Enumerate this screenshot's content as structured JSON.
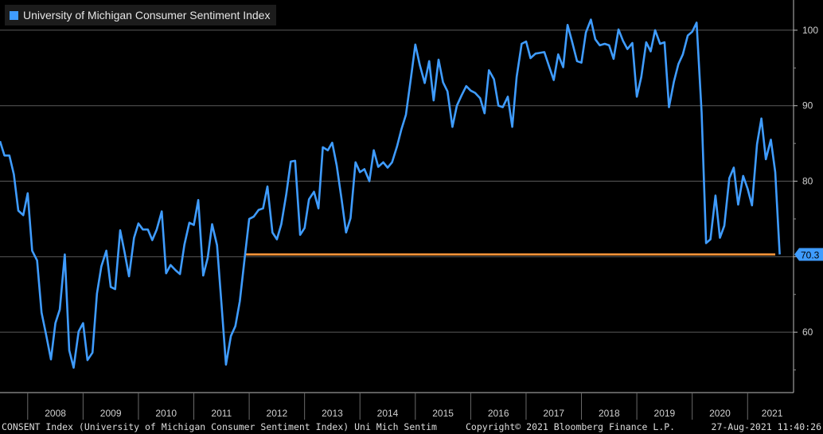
{
  "legend": {
    "label": "University of Michigan Consumer Sentiment Index",
    "color": "#3f9cff"
  },
  "footer": {
    "left": "CONSENT Index (University of Michigan Consumer Sentiment Index) Uni Mich Sentim",
    "center": "Copyright© 2021 Bloomberg Finance L.P.",
    "right": "27-Aug-2021 11:40:26"
  },
  "chart_data": {
    "type": "line",
    "ylim": [
      52,
      104
    ],
    "xlim": [
      2007.5,
      2021.83
    ],
    "yticks": [
      60,
      70,
      80,
      90,
      100
    ],
    "ytick_labels": [
      "60",
      "70",
      "80",
      "90",
      "100"
    ],
    "xticks": [
      "2008",
      "2009",
      "2010",
      "2011",
      "2012",
      "2013",
      "2014",
      "2015",
      "2016",
      "2017",
      "2018",
      "2019",
      "2020",
      "2021"
    ],
    "grid": "horizontal",
    "legend_position": "top-left",
    "series": [
      {
        "name": "University of Michigan Consumer Sentiment Index",
        "color": "#3f9cff",
        "x": [
          2007.5,
          2007.58,
          2007.67,
          2007.75,
          2007.83,
          2007.92,
          2008.0,
          2008.08,
          2008.17,
          2008.25,
          2008.33,
          2008.42,
          2008.5,
          2008.58,
          2008.67,
          2008.75,
          2008.83,
          2008.92,
          2009.0,
          2009.08,
          2009.17,
          2009.25,
          2009.33,
          2009.42,
          2009.5,
          2009.58,
          2009.67,
          2009.75,
          2009.83,
          2009.92,
          2010.0,
          2010.08,
          2010.17,
          2010.25,
          2010.33,
          2010.42,
          2010.5,
          2010.58,
          2010.67,
          2010.75,
          2010.83,
          2010.92,
          2011.0,
          2011.08,
          2011.17,
          2011.25,
          2011.33,
          2011.42,
          2011.5,
          2011.58,
          2011.67,
          2011.75,
          2011.83,
          2011.92,
          2012.0,
          2012.08,
          2012.17,
          2012.25,
          2012.33,
          2012.42,
          2012.5,
          2012.58,
          2012.67,
          2012.75,
          2012.83,
          2012.92,
          2013.0,
          2013.08,
          2013.17,
          2013.25,
          2013.33,
          2013.42,
          2013.5,
          2013.58,
          2013.67,
          2013.75,
          2013.83,
          2013.92,
          2014.0,
          2014.08,
          2014.17,
          2014.25,
          2014.33,
          2014.42,
          2014.5,
          2014.58,
          2014.67,
          2014.75,
          2014.83,
          2014.92,
          2015.0,
          2015.08,
          2015.17,
          2015.25,
          2015.33,
          2015.42,
          2015.5,
          2015.58,
          2015.67,
          2015.75,
          2015.83,
          2015.92,
          2016.0,
          2016.08,
          2016.17,
          2016.25,
          2016.33,
          2016.42,
          2016.5,
          2016.58,
          2016.67,
          2016.75,
          2016.83,
          2016.92,
          2017.0,
          2017.08,
          2017.17,
          2017.25,
          2017.33,
          2017.42,
          2017.5,
          2017.58,
          2017.67,
          2017.75,
          2017.83,
          2017.92,
          2018.0,
          2018.08,
          2018.17,
          2018.25,
          2018.33,
          2018.42,
          2018.5,
          2018.58,
          2018.67,
          2018.75,
          2018.83,
          2018.92,
          2019.0,
          2019.08,
          2019.17,
          2019.25,
          2019.33,
          2019.42,
          2019.5,
          2019.58,
          2019.67,
          2019.75,
          2019.83,
          2019.92,
          2020.0,
          2020.08,
          2020.17,
          2020.25,
          2020.33,
          2020.42,
          2020.5,
          2020.58,
          2020.67,
          2020.75,
          2020.83,
          2020.92,
          2021.0,
          2021.08,
          2021.17,
          2021.25,
          2021.33,
          2021.42,
          2021.5,
          2021.58
        ],
        "values": [
          85.3,
          83.4,
          83.4,
          80.9,
          76.1,
          75.5,
          78.4,
          70.8,
          69.5,
          62.6,
          59.8,
          56.4,
          61.2,
          63.0,
          70.3,
          57.6,
          55.3,
          60.1,
          61.2,
          56.3,
          57.3,
          65.1,
          68.7,
          70.8,
          66.0,
          65.7,
          73.5,
          70.6,
          67.4,
          72.5,
          74.4,
          73.6,
          73.6,
          72.2,
          73.6,
          76.0,
          67.8,
          68.9,
          68.2,
          67.7,
          71.6,
          74.5,
          74.2,
          77.5,
          67.5,
          69.8,
          74.3,
          71.5,
          63.7,
          55.7,
          59.5,
          60.8,
          64.1,
          69.9,
          75.0,
          75.3,
          76.2,
          76.4,
          79.3,
          73.2,
          72.3,
          74.3,
          78.3,
          82.6,
          82.7,
          72.9,
          73.8,
          77.6,
          78.6,
          76.4,
          84.5,
          84.1,
          85.1,
          82.1,
          77.5,
          73.2,
          75.1,
          82.5,
          81.2,
          81.6,
          80.0,
          84.1,
          81.9,
          82.5,
          81.8,
          82.5,
          84.6,
          86.9,
          88.8,
          93.6,
          98.1,
          95.4,
          93.0,
          95.9,
          90.7,
          96.1,
          93.1,
          91.9,
          87.2,
          90.0,
          91.3,
          92.6,
          92.0,
          91.7,
          91.0,
          89.0,
          94.7,
          93.5,
          90.0,
          89.8,
          91.2,
          87.2,
          93.8,
          98.2,
          98.5,
          96.3,
          96.9,
          97.0,
          97.1,
          95.1,
          93.4,
          96.8,
          95.1,
          100.7,
          98.5,
          95.9,
          95.7,
          99.7,
          101.4,
          98.8,
          98.0,
          98.2,
          98.0,
          96.2,
          100.1,
          98.6,
          97.5,
          98.3,
          91.2,
          93.8,
          98.4,
          97.2,
          100.0,
          98.2,
          98.4,
          89.8,
          93.2,
          95.5,
          96.8,
          99.3,
          99.8,
          101.0,
          89.1,
          71.8,
          72.3,
          78.1,
          72.5,
          74.1,
          80.4,
          81.8,
          76.9,
          80.7,
          79.0,
          76.8,
          84.9,
          88.3,
          82.9,
          85.5,
          81.2,
          70.3
        ]
      }
    ],
    "reference_line": {
      "value": 70.3,
      "from": 2011.92,
      "to": 2021.5,
      "color": "#ff9a3c"
    },
    "last_value_tag": {
      "label": "70.3",
      "color": "#3f9cff"
    }
  }
}
